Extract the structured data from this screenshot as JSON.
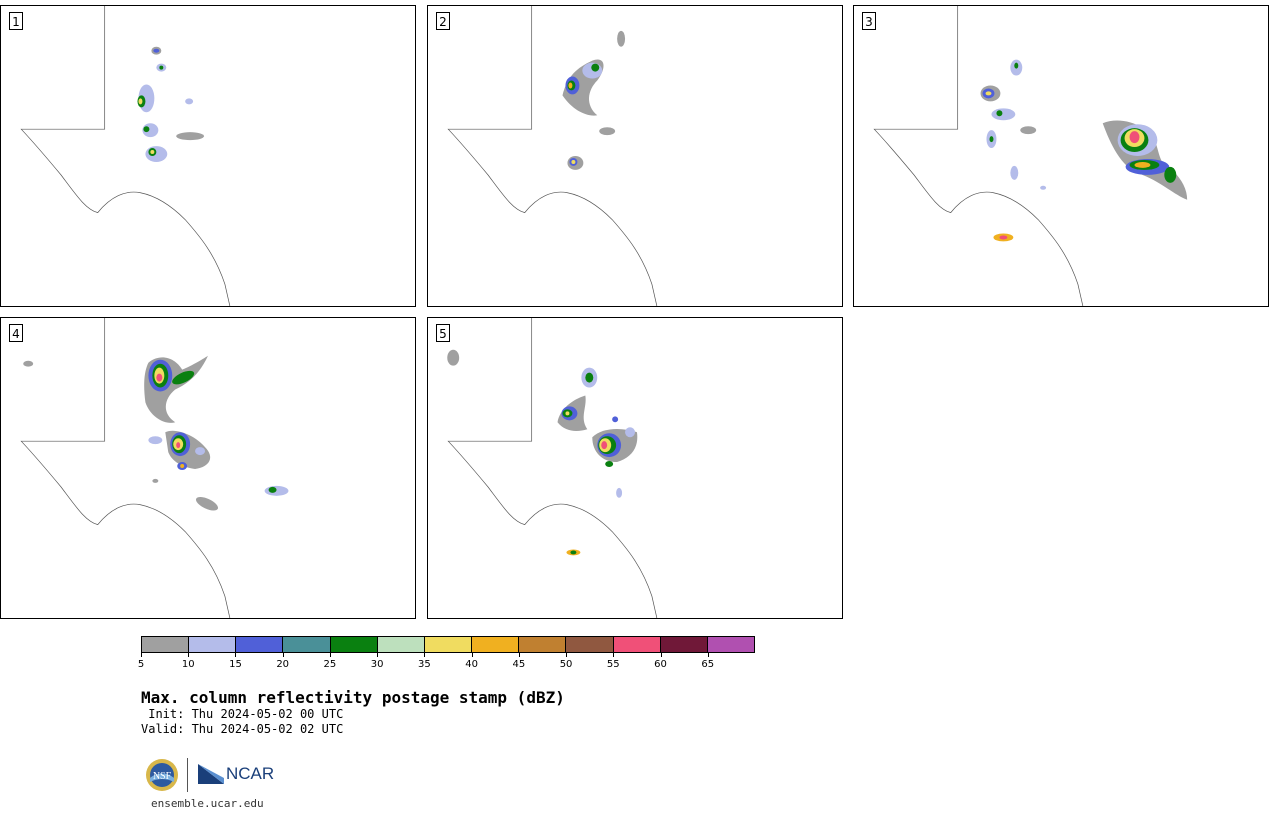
{
  "panels": [
    {
      "label": "1"
    },
    {
      "label": "2"
    },
    {
      "label": "3"
    },
    {
      "label": "4"
    },
    {
      "label": "5"
    }
  ],
  "colorbar": {
    "colors": [
      "#a0a0a0",
      "#b4bcea",
      "#5060d8",
      "#4a9098",
      "#0a8010",
      "#bde0bd",
      "#f0dc60",
      "#f0b020",
      "#c08030",
      "#905840",
      "#f05078",
      "#701838",
      "#b050b0"
    ],
    "ticks": [
      "5",
      "10",
      "15",
      "20",
      "25",
      "30",
      "35",
      "40",
      "45",
      "50",
      "55",
      "60",
      "65"
    ]
  },
  "title": "Max. column reflectivity postage stamp (dBZ)",
  "init": " Init: Thu 2024-05-02 00 UTC",
  "valid": "Valid: Thu 2024-05-02 02 UTC",
  "logos": {
    "nsf": "NSF",
    "ncar": "NCAR"
  },
  "website": "ensemble.ucar.edu",
  "icons": {
    "nsf": "nsf-logo-icon",
    "ncar": "ncar-logo-icon"
  }
}
